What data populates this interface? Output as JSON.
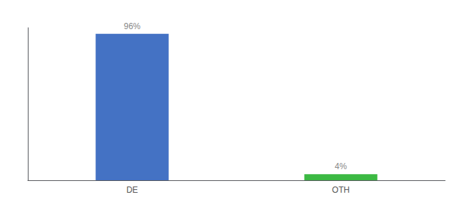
{
  "chart_data": {
    "type": "bar",
    "categories": [
      "DE",
      "OTH"
    ],
    "values": [
      96,
      4
    ],
    "colors": [
      "#4472c4",
      "#3cb943"
    ],
    "value_labels": [
      "96%",
      "4%"
    ],
    "data_labels": true,
    "ylim": [
      0,
      100
    ],
    "tick_labels": "x",
    "grid": false
  }
}
